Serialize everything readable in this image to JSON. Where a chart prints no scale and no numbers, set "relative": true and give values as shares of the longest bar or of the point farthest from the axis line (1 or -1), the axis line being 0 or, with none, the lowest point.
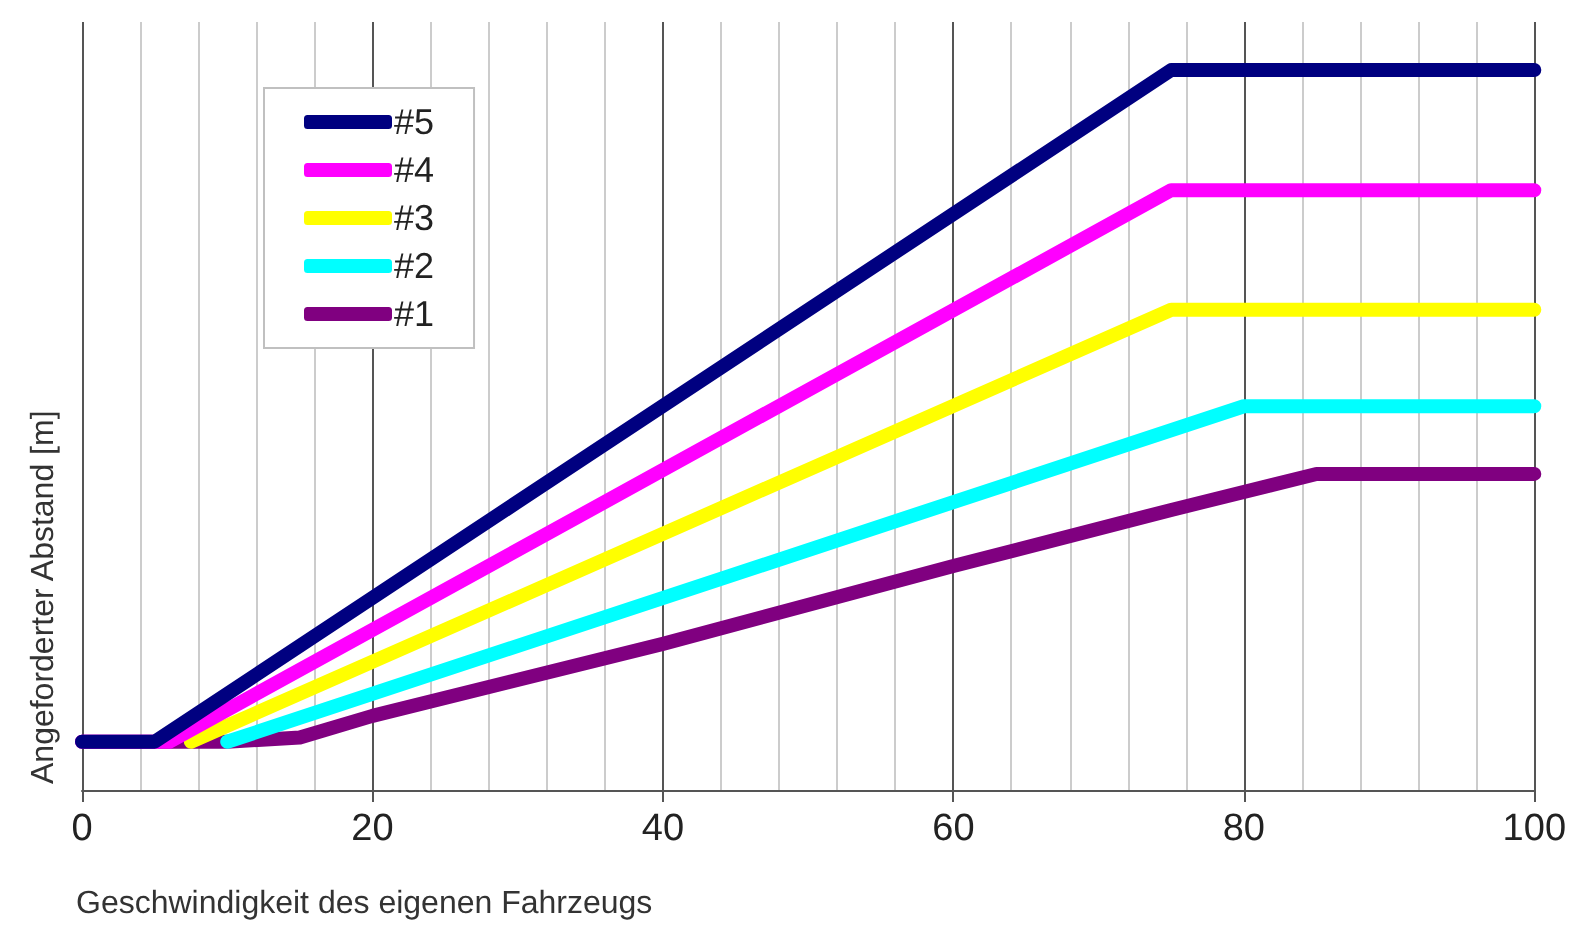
{
  "chart_data": {
    "type": "line",
    "xlabel": "Geschwindigkeit des eigenen Fahrzeugs",
    "ylabel": "Angeforderter Abstand [m]",
    "relative": true,
    "xlim": [
      0,
      100
    ],
    "xticks": [
      0,
      20,
      40,
      60,
      80,
      100
    ],
    "grid": true,
    "legend": "top left",
    "line_style": "solid",
    "series": [
      {
        "name": "#5",
        "color": "#000080",
        "x": [
          0,
          5,
          75,
          100
        ],
        "values": [
          0.067,
          0.067,
          1,
          1
        ]
      },
      {
        "name": "#4",
        "color": "#ff00ff",
        "x": [
          0,
          6,
          75,
          100
        ],
        "values": [
          0.067,
          0.067,
          0.833,
          0.833
        ]
      },
      {
        "name": "#3",
        "color": "#ffff00",
        "x": [
          7.5,
          75,
          100
        ],
        "values": [
          0.067,
          0.667,
          0.667
        ]
      },
      {
        "name": "#2",
        "color": "#00ffff",
        "x": [
          10,
          80,
          100
        ],
        "values": [
          0.067,
          0.533,
          0.533
        ]
      },
      {
        "name": "#1",
        "color": "#800080",
        "x": [
          0,
          10,
          15,
          20,
          40,
          60,
          75,
          85,
          100
        ],
        "values": [
          0.067,
          0.067,
          0.073,
          0.103,
          0.203,
          0.311,
          0.389,
          0.439,
          0.439
        ]
      }
    ]
  }
}
